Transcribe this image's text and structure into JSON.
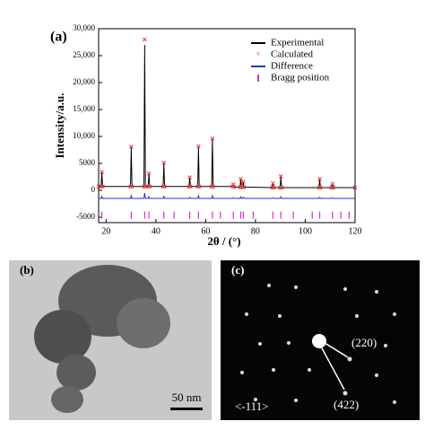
{
  "chart_data": {
    "type": "line",
    "panel_label": "(a)",
    "xlabel": "2θ / (°)",
    "ylabel": "Intensity/a.u.",
    "xlim": [
      17,
      120
    ],
    "ylim": [
      -6000,
      30000
    ],
    "xticks": [
      20,
      40,
      60,
      80,
      100,
      120
    ],
    "yticks": [
      -5000,
      0,
      5000,
      {
        "value": 10000,
        "label": "10,000"
      },
      {
        "value": 15000,
        "label": "15,000"
      },
      {
        "value": 20000,
        "label": "20,000"
      },
      {
        "value": 25000,
        "label": "25,000"
      },
      {
        "value": 30000,
        "label": "30,000"
      }
    ],
    "legend": "upper right",
    "x": [
      17,
      18,
      18.3,
      18.6,
      29.8,
      30.1,
      30.4,
      35.2,
      35.5,
      35.8,
      36.9,
      37.2,
      37.5,
      42.9,
      43.2,
      43.5,
      53.3,
      53.6,
      53.9,
      56.8,
      57.1,
      57.4,
      62.4,
      62.7,
      63.0,
      70.8,
      71.1,
      71.4,
      73.8,
      74.1,
      74.4,
      74.8,
      75.1,
      75.4,
      86.7,
      87.0,
      87.3,
      89.9,
      90.2,
      90.5,
      105.5,
      105.8,
      106.1,
      110.6,
      110.9,
      111.2,
      120
    ],
    "series": [
      {
        "name": "Experimental",
        "color": "#000000",
        "mark": "line",
        "values": [
          700,
          700,
          3300,
          700,
          700,
          8000,
          700,
          700,
          27000,
          700,
          700,
          3000,
          700,
          700,
          5000,
          700,
          700,
          2300,
          700,
          700,
          8000,
          700,
          700,
          9500,
          700,
          700,
          1000,
          600,
          600,
          2000,
          600,
          600,
          1500,
          600,
          500,
          1200,
          500,
          500,
          2500,
          500,
          500,
          2000,
          500,
          500,
          1100,
          500,
          500
        ]
      },
      {
        "name": "Calculated",
        "color": "#e03c3c",
        "mark": "cross",
        "values": [
          700,
          700,
          3400,
          700,
          700,
          8100,
          700,
          700,
          28000,
          700,
          700,
          3100,
          700,
          700,
          5100,
          700,
          700,
          2400,
          700,
          700,
          8200,
          700,
          700,
          9600,
          700,
          700,
          1100,
          600,
          600,
          2100,
          600,
          600,
          1600,
          600,
          500,
          1300,
          500,
          500,
          2600,
          500,
          500,
          2100,
          500,
          500,
          1200,
          500,
          500
        ]
      },
      {
        "name": "Difference",
        "color": "#2233cc",
        "mark": "line",
        "values": [
          -1500,
          -1500,
          -1100,
          -1500,
          -1500,
          -1000,
          -1500,
          -1500,
          -500,
          -1500,
          -1500,
          -1200,
          -1500,
          -1500,
          -1100,
          -1500,
          -1500,
          -1300,
          -1500,
          -1500,
          -1000,
          -1500,
          -1500,
          -1000,
          -1500,
          -1500,
          -1400,
          -1500,
          -1500,
          -1200,
          -1500,
          -1500,
          -1300,
          -1500,
          -1500,
          -1400,
          -1500,
          -1500,
          -1200,
          -1500,
          -1500,
          -1300,
          -1500,
          -1500,
          -1400,
          -1500,
          -1500
        ]
      },
      {
        "name": "Bragg position",
        "color": "#cc33cc",
        "mark": "tick",
        "x": [
          18.3,
          30.1,
          35.5,
          37.2,
          43.2,
          47.3,
          53.6,
          57.1,
          62.7,
          65.9,
          71.1,
          74.1,
          75.1,
          79.1,
          87.0,
          90.2,
          95.2,
          102.8,
          105.8,
          110.9,
          114.3,
          117.6
        ],
        "values": [
          -4600,
          -4600,
          -4600,
          -4600,
          -4600,
          -4600,
          -4600,
          -4600,
          -4600,
          -4600,
          -4600,
          -4600,
          -4600,
          -4600,
          -4600,
          -4600,
          -4600,
          -4600,
          -4600,
          -4600,
          -4600,
          -4600
        ]
      }
    ]
  },
  "panels": {
    "b": {
      "label": "(b)",
      "scale": "50 nm"
    },
    "c": {
      "label": "(c)",
      "zone": "<-111>",
      "spot1": "(220)",
      "spot2": "(422)"
    }
  }
}
